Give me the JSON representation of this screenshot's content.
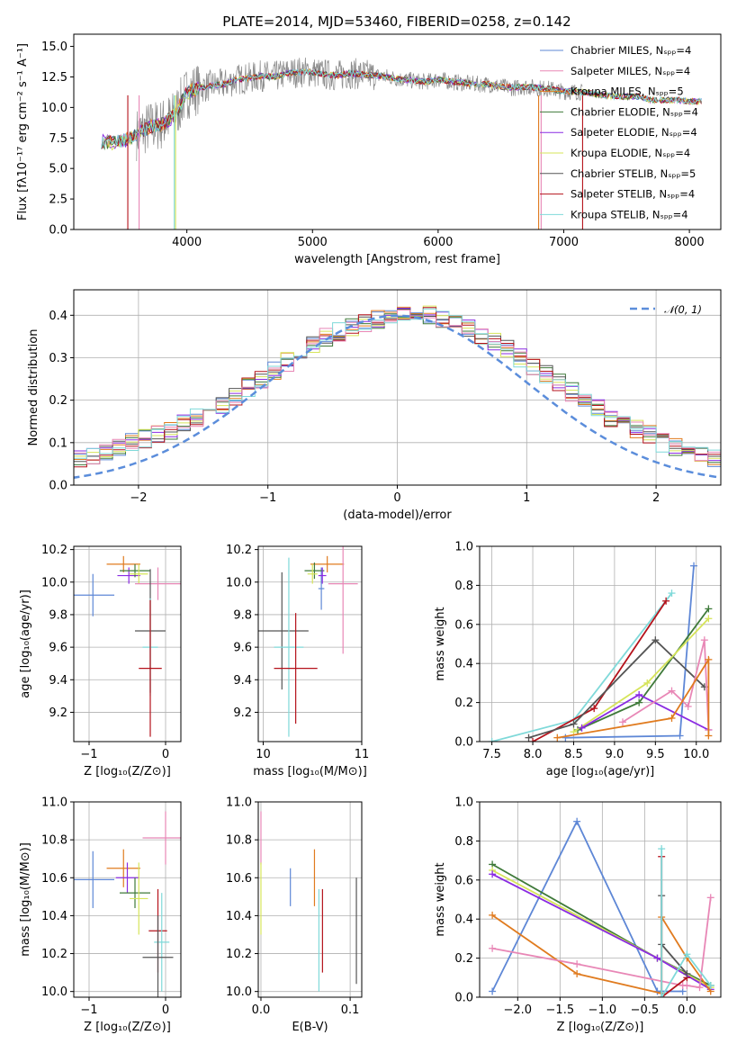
{
  "figure": {
    "title": "PLATE=2014, MJD=53460, FIBERID=0258, z=0.142",
    "colors": {
      "blue": "#5e87d6",
      "orange": "#e07b1f",
      "green": "#3f7a3a",
      "purple": "#8a2be2",
      "yellow": "#d6e45a",
      "darkgray": "#555555",
      "red": "#b5121b",
      "pink": "#e887b6",
      "cyan": "#7fd9d9",
      "gray": "#8a8a8a",
      "dashed": "#5b8ddb",
      "grid": "#b0b0b0"
    }
  },
  "chart_data": [
    {
      "id": "spectrum",
      "type": "line",
      "xlabel": "wavelength [Angstrom, rest frame]",
      "ylabel": "Flux [fλ10⁻¹⁷ erg cm⁻² s⁻¹ A⁻¹]",
      "xlim": [
        3100,
        8250
      ],
      "ylim": [
        0,
        16
      ],
      "xticks": [
        4000,
        5000,
        6000,
        7000,
        8000
      ],
      "yticks": [
        0.0,
        2.5,
        5.0,
        7.5,
        10.0,
        12.5,
        15.0
      ],
      "legend_position": "top-right",
      "legend": [
        {
          "label": "Chabrier MILES, Nₛₚₚ=4",
          "color": "blue"
        },
        {
          "label": "Salpeter MILES, Nₛₚₚ=4",
          "color": "pink"
        },
        {
          "label": "Kroupa MILES, Nₛₚₚ=5",
          "color": "orange"
        },
        {
          "label": "Chabrier ELODIE, Nₛₚₚ=4",
          "color": "green"
        },
        {
          "label": "Salpeter ELODIE, Nₛₚₚ=4",
          "color": "purple"
        },
        {
          "label": "Kroupa ELODIE, Nₛₚₚ=4",
          "color": "yellow"
        },
        {
          "label": "Chabrier STELIB, Nₛₚₚ=5",
          "color": "darkgray"
        },
        {
          "label": "Salpeter STELIB, Nₛₚₚ=4",
          "color": "red"
        },
        {
          "label": "Kroupa STELIB, Nₛₚₚ=4",
          "color": "cyan"
        }
      ],
      "model_continuum": [
        [
          3320,
          7.2
        ],
        [
          3400,
          7.1
        ],
        [
          3500,
          7.3
        ],
        [
          3600,
          7.8
        ],
        [
          3700,
          8.4
        ],
        [
          3800,
          8.6
        ],
        [
          3900,
          9.3
        ],
        [
          4000,
          11.2
        ],
        [
          4100,
          11.6
        ],
        [
          4200,
          11.8
        ],
        [
          4300,
          11.9
        ],
        [
          4400,
          12.3
        ],
        [
          4500,
          12.4
        ],
        [
          4600,
          12.6
        ],
        [
          4700,
          12.5
        ],
        [
          4800,
          12.8
        ],
        [
          4900,
          12.9
        ],
        [
          5000,
          12.9
        ],
        [
          5100,
          12.7
        ],
        [
          5200,
          12.6
        ],
        [
          5300,
          12.8
        ],
        [
          5400,
          12.7
        ],
        [
          5500,
          12.6
        ],
        [
          5600,
          12.5
        ],
        [
          5700,
          12.3
        ],
        [
          5800,
          12.2
        ],
        [
          5900,
          12.1
        ],
        [
          6000,
          12.3
        ],
        [
          6100,
          12.1
        ],
        [
          6200,
          12.0
        ],
        [
          6300,
          11.9
        ],
        [
          6400,
          11.9
        ],
        [
          6500,
          11.7
        ],
        [
          6600,
          11.6
        ],
        [
          6700,
          11.7
        ],
        [
          6800,
          11.6
        ],
        [
          6900,
          11.5
        ],
        [
          7000,
          11.3
        ],
        [
          7100,
          11.3
        ],
        [
          7200,
          11.2
        ],
        [
          7300,
          11.0
        ],
        [
          7400,
          10.9
        ],
        [
          7500,
          10.9
        ],
        [
          7600,
          10.9
        ],
        [
          7700,
          10.6
        ],
        [
          7800,
          10.6
        ],
        [
          7900,
          10.6
        ],
        [
          8000,
          10.5
        ],
        [
          8100,
          10.5
        ]
      ],
      "data_wavelength_range": [
        3600,
        7150
      ],
      "drop_lines": [
        [
          3530,
          "red"
        ],
        [
          3620,
          "pink"
        ],
        [
          3900,
          "cyan"
        ],
        [
          3910,
          "yellow"
        ],
        [
          6800,
          "orange"
        ],
        [
          6820,
          "pink"
        ],
        [
          7150,
          "red"
        ]
      ]
    },
    {
      "id": "residual_histogram",
      "type": "line",
      "xlabel": "(data-model)/error",
      "ylabel": "Normed distribution",
      "xlim": [
        -2.5,
        2.5
      ],
      "ylim": [
        0,
        0.46
      ],
      "xticks": [
        -2,
        -1,
        0,
        1,
        2
      ],
      "yticks": [
        0.0,
        0.1,
        0.2,
        0.3,
        0.4
      ],
      "legend_position": "top-right",
      "legend": [
        {
          "label": "𝒩(0, 1)",
          "color": "dashed"
        }
      ],
      "bin_width": 0.1,
      "base_histogram": [
        0.03,
        0.03,
        0.04,
        0.04,
        0.05,
        0.06,
        0.07,
        0.08,
        0.09,
        0.1,
        0.11,
        0.12,
        0.13,
        0.15,
        0.16,
        0.18,
        0.19,
        0.21,
        0.23,
        0.25,
        0.27,
        0.29,
        0.31,
        0.33,
        0.35,
        0.36,
        0.37,
        0.38,
        0.39,
        0.4,
        0.41,
        0.4,
        0.4,
        0.39,
        0.38,
        0.37,
        0.35,
        0.34,
        0.32,
        0.3,
        0.28,
        0.26,
        0.24,
        0.22,
        0.2,
        0.18,
        0.16,
        0.15,
        0.13,
        0.12,
        0.1,
        0.09,
        0.08,
        0.07,
        0.06,
        0.06,
        0.05,
        0.04,
        0.04,
        0.03,
        0.03
      ]
    },
    {
      "id": "age_vs_z",
      "type": "scatter",
      "xlabel": "Z [log₁₀(Z/Z⊙)]",
      "ylabel": "age  [log₁₀(age/yr)]",
      "xlim": [
        -1.2,
        0.2
      ],
      "ylim": [
        9.02,
        10.22
      ],
      "xticks": [
        -1,
        0
      ],
      "yticks": [
        9.2,
        9.4,
        9.6,
        9.8,
        10.0,
        10.2
      ],
      "points": [
        {
          "c": "blue",
          "x": -0.95,
          "y": 9.92,
          "xe": 0.28,
          "ye": 0.13
        },
        {
          "c": "orange",
          "x": -0.55,
          "y": 10.11,
          "xe": 0.22,
          "ye": 0.05
        },
        {
          "c": "purple",
          "x": -0.48,
          "y": 10.04,
          "xe": 0.15,
          "ye": 0.05
        },
        {
          "c": "green",
          "x": -0.4,
          "y": 10.07,
          "xe": 0.2,
          "ye": 0.04
        },
        {
          "c": "yellow",
          "x": -0.35,
          "y": 10.05,
          "xe": 0.12,
          "ye": 0.06
        },
        {
          "c": "pink",
          "x": -0.1,
          "y": 9.99,
          "xe": 0.3,
          "ye": 0.1
        },
        {
          "c": "darkgray",
          "x": -0.2,
          "y": 9.7,
          "xe": 0.2,
          "ye": 0.38
        },
        {
          "c": "cyan",
          "x": -0.2,
          "y": 9.6,
          "xe": 0.1,
          "ye": 0.3
        },
        {
          "c": "red",
          "x": -0.2,
          "y": 9.47,
          "xe": 0.15,
          "ye": 0.42
        }
      ]
    },
    {
      "id": "age_vs_mass",
      "type": "scatter",
      "xlabel": "mass [log₁₀(M/M⊙)]",
      "ylabel": "",
      "xlim": [
        9.95,
        11.0
      ],
      "ylim": [
        9.02,
        10.22
      ],
      "xticks": [
        10,
        11
      ],
      "yticks": [
        9.2,
        9.4,
        9.6,
        9.8,
        10.0,
        10.2
      ],
      "points": [
        {
          "c": "orange",
          "x": 10.65,
          "y": 10.11,
          "xe": 0.17,
          "ye": 0.05
        },
        {
          "c": "blue",
          "x": 10.59,
          "y": 9.96,
          "xe": 0.03,
          "ye": 0.13
        },
        {
          "c": "green",
          "x": 10.52,
          "y": 10.07,
          "xe": 0.1,
          "ye": 0.05
        },
        {
          "c": "yellow",
          "x": 10.5,
          "y": 10.05,
          "xe": 0.05,
          "ye": 0.06
        },
        {
          "c": "purple",
          "x": 10.6,
          "y": 10.04,
          "xe": 0.04,
          "ye": 0.05
        },
        {
          "c": "pink",
          "x": 10.81,
          "y": 9.99,
          "xe": 0.15,
          "ye": 0.43
        },
        {
          "c": "darkgray",
          "x": 10.19,
          "y": 9.7,
          "xe": 0.27,
          "ye": 0.36
        },
        {
          "c": "cyan",
          "x": 10.26,
          "y": 9.6,
          "xe": 0.15,
          "ye": 0.55
        },
        {
          "c": "red",
          "x": 10.33,
          "y": 9.47,
          "xe": 0.22,
          "ye": 0.34
        }
      ]
    },
    {
      "id": "weight_vs_age",
      "type": "line",
      "xlabel": "age  [log₁₀(age/yr)]",
      "ylabel": "mass weight",
      "xlim": [
        7.35,
        10.3
      ],
      "ylim": [
        0,
        1.0
      ],
      "xticks": [
        7.5,
        8.0,
        8.5,
        9.0,
        9.5,
        10.0
      ],
      "yticks": [
        0.0,
        0.2,
        0.4,
        0.6,
        0.8,
        1.0
      ],
      "series": [
        {
          "c": "blue",
          "pts": [
            [
              8.4,
              0.02
            ],
            [
              9.8,
              0.03
            ],
            [
              9.97,
              0.9
            ]
          ]
        },
        {
          "c": "cyan",
          "pts": [
            [
              7.5,
              0.0
            ],
            [
              8.5,
              0.11
            ],
            [
              9.7,
              0.76
            ]
          ]
        },
        {
          "c": "red",
          "pts": [
            [
              8.0,
              0.0
            ],
            [
              8.75,
              0.17
            ],
            [
              9.63,
              0.72
            ]
          ]
        },
        {
          "c": "darkgray",
          "pts": [
            [
              7.95,
              0.02
            ],
            [
              8.5,
              0.09
            ],
            [
              9.5,
              0.52
            ],
            [
              10.1,
              0.28
            ]
          ]
        },
        {
          "c": "green",
          "pts": [
            [
              8.55,
              0.06
            ],
            [
              9.3,
              0.2
            ],
            [
              10.15,
              0.68
            ]
          ]
        },
        {
          "c": "yellow",
          "pts": [
            [
              8.5,
              0.05
            ],
            [
              9.4,
              0.3
            ],
            [
              10.15,
              0.63
            ]
          ]
        },
        {
          "c": "purple",
          "pts": [
            [
              8.6,
              0.07
            ],
            [
              9.3,
              0.24
            ],
            [
              10.15,
              0.06
            ]
          ]
        },
        {
          "c": "pink",
          "pts": [
            [
              9.1,
              0.1
            ],
            [
              9.7,
              0.26
            ],
            [
              9.9,
              0.18
            ],
            [
              10.1,
              0.52
            ],
            [
              10.15,
              0.06
            ]
          ]
        },
        {
          "c": "orange",
          "pts": [
            [
              8.3,
              0.02
            ],
            [
              9.7,
              0.12
            ],
            [
              10.15,
              0.42
            ],
            [
              10.15,
              0.03
            ]
          ]
        }
      ]
    },
    {
      "id": "mass_vs_z",
      "type": "scatter",
      "xlabel": "Z [log₁₀(Z/Z⊙)]",
      "ylabel": "mass [log₁₀(M/M⊙)]",
      "xlim": [
        -1.2,
        0.2
      ],
      "ylim": [
        9.97,
        11.0
      ],
      "xticks": [
        -1,
        0
      ],
      "yticks": [
        10.0,
        10.2,
        10.4,
        10.6,
        10.8,
        11.0
      ],
      "points": [
        {
          "c": "blue",
          "x": -0.95,
          "y": 10.59,
          "xe": 0.28,
          "ye": 0.15
        },
        {
          "c": "orange",
          "x": -0.55,
          "y": 10.65,
          "xe": 0.22,
          "ye": 0.1
        },
        {
          "c": "purple",
          "x": -0.5,
          "y": 10.6,
          "xe": 0.15,
          "ye": 0.08
        },
        {
          "c": "green",
          "x": -0.4,
          "y": 10.52,
          "xe": 0.2,
          "ye": 0.08
        },
        {
          "c": "yellow",
          "x": -0.35,
          "y": 10.49,
          "xe": 0.12,
          "ye": 0.19
        },
        {
          "c": "pink",
          "x": 0.0,
          "y": 10.81,
          "xe": 0.3,
          "ye": 0.14
        },
        {
          "c": "red",
          "x": -0.1,
          "y": 10.32,
          "xe": 0.12,
          "ye": 0.22
        },
        {
          "c": "cyan",
          "x": -0.05,
          "y": 10.26,
          "xe": 0.1,
          "ye": 0.26
        },
        {
          "c": "darkgray",
          "x": -0.1,
          "y": 10.18,
          "xe": 0.2,
          "ye": 0.22
        }
      ]
    },
    {
      "id": "mass_vs_ebv",
      "type": "scatter",
      "xlabel": "E(B-V)",
      "ylabel": "",
      "xlim": [
        -0.003,
        0.113
      ],
      "ylim": [
        9.97,
        11.0
      ],
      "xticks": [
        0.0,
        0.1
      ],
      "yticks": [
        10.0,
        10.2,
        10.4,
        10.6,
        10.8,
        11.0
      ],
      "points": [
        {
          "c": "pink",
          "x": 0.0,
          "y": 10.81,
          "xe": 0.0,
          "ye": 0.14
        },
        {
          "c": "yellow",
          "x": 0.0,
          "y": 10.49,
          "xe": 0.0,
          "ye": 0.19
        },
        {
          "c": "blue",
          "x": 0.033,
          "y": 10.55,
          "xe": 0.0,
          "ye": 0.1
        },
        {
          "c": "orange",
          "x": 0.06,
          "y": 10.6,
          "xe": 0.0,
          "ye": 0.15
        },
        {
          "c": "cyan",
          "x": 0.065,
          "y": 10.27,
          "xe": 0.0,
          "ye": 0.27
        },
        {
          "c": "red",
          "x": 0.069,
          "y": 10.32,
          "xe": 0.0,
          "ye": 0.22
        },
        {
          "c": "darkgray",
          "x": 0.107,
          "y": 10.32,
          "xe": 0.0,
          "ye": 0.28
        }
      ]
    },
    {
      "id": "weight_vs_z",
      "type": "line",
      "xlabel": "Z [log₁₀(Z/Z⊙)]",
      "ylabel": "mass weight",
      "xlim": [
        -2.45,
        0.4
      ],
      "ylim": [
        0,
        1.0
      ],
      "xticks": [
        -2.0,
        -1.5,
        -1.0,
        -0.5,
        0.0
      ],
      "yticks": [
        0.0,
        0.2,
        0.4,
        0.6,
        0.8,
        1.0
      ],
      "series": [
        {
          "c": "blue",
          "pts": [
            [
              -2.3,
              0.03
            ],
            [
              -1.3,
              0.9
            ],
            [
              -0.35,
              0.03
            ],
            [
              -0.05,
              0.03
            ]
          ]
        },
        {
          "c": "green",
          "pts": [
            [
              -2.3,
              0.68
            ],
            [
              -0.35,
              0.2
            ],
            [
              0.28,
              0.06
            ]
          ]
        },
        {
          "c": "yellow",
          "pts": [
            [
              -2.3,
              0.65
            ],
            [
              -0.35,
              0.2
            ],
            [
              0.28,
              0.05
            ]
          ]
        },
        {
          "c": "purple",
          "pts": [
            [
              -2.3,
              0.63
            ],
            [
              -0.35,
              0.2
            ],
            [
              0.28,
              0.04
            ]
          ]
        },
        {
          "c": "orange",
          "pts": [
            [
              -2.3,
              0.42
            ],
            [
              -1.3,
              0.12
            ],
            [
              -0.3,
              0.02
            ],
            [
              -0.3,
              0.41
            ],
            [
              0.0,
              0.2
            ],
            [
              0.28,
              0.03
            ]
          ]
        },
        {
          "c": "pink",
          "pts": [
            [
              -2.3,
              0.25
            ],
            [
              -1.3,
              0.17
            ],
            [
              -0.05,
              0.06
            ],
            [
              0.0,
              0.06
            ],
            [
              0.15,
              0.05
            ],
            [
              0.28,
              0.51
            ]
          ]
        },
        {
          "c": "red",
          "pts": [
            [
              -0.3,
              0.72
            ],
            [
              -0.3,
              0.0
            ],
            [
              0.0,
              0.1
            ]
          ]
        },
        {
          "c": "darkgray",
          "pts": [
            [
              -0.3,
              0.52
            ],
            [
              -0.3,
              0.27
            ],
            [
              0.0,
              0.12
            ]
          ]
        },
        {
          "c": "cyan",
          "pts": [
            [
              -0.3,
              0.76
            ],
            [
              -0.3,
              0.0
            ],
            [
              0.0,
              0.22
            ],
            [
              0.28,
              0.06
            ]
          ]
        }
      ]
    }
  ]
}
